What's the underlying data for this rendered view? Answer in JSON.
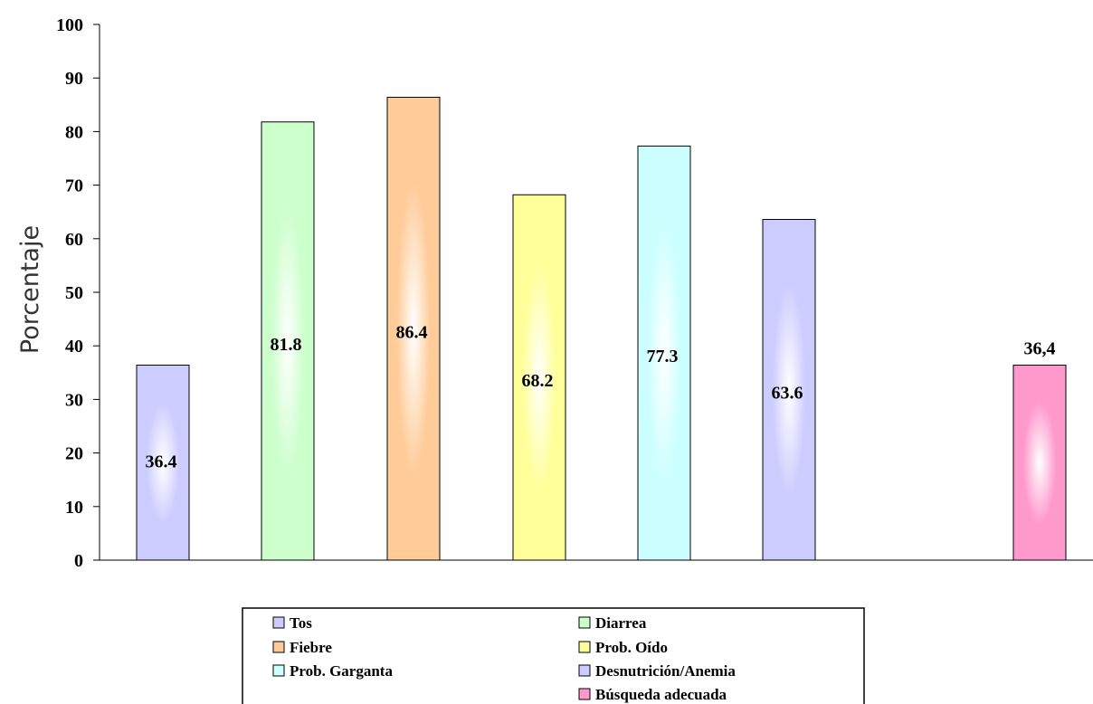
{
  "chart_data": {
    "type": "bar",
    "title": "",
    "xlabel": "",
    "ylabel": "Porcentaje",
    "ylim": [
      0,
      100
    ],
    "yticks": [
      0,
      10,
      20,
      30,
      40,
      50,
      60,
      70,
      80,
      90,
      100
    ],
    "grid": false,
    "legend_position": "bottom",
    "series": [
      {
        "name": "Tos",
        "value": 36.4,
        "label": "36.4",
        "color": "#ccccff"
      },
      {
        "name": "Diarrea",
        "value": 81.8,
        "label": "81.8",
        "color": "#ccffcc"
      },
      {
        "name": "Fiebre",
        "value": 86.4,
        "label": "86.4",
        "color": "#ffcc99"
      },
      {
        "name": "Prob. Oído",
        "value": 68.2,
        "label": "68.2",
        "color": "#ffff99"
      },
      {
        "name": "Prob. Garganta",
        "value": 77.3,
        "label": "77.3",
        "color": "#ccffff"
      },
      {
        "name": "Desnutrición/Anemia",
        "value": 63.6,
        "label": "63.6",
        "color": "#ccccff"
      },
      {
        "name": "Búsqueda adecuada",
        "value": 36.4,
        "label": "36,4",
        "color": "#ff99cc"
      }
    ]
  }
}
